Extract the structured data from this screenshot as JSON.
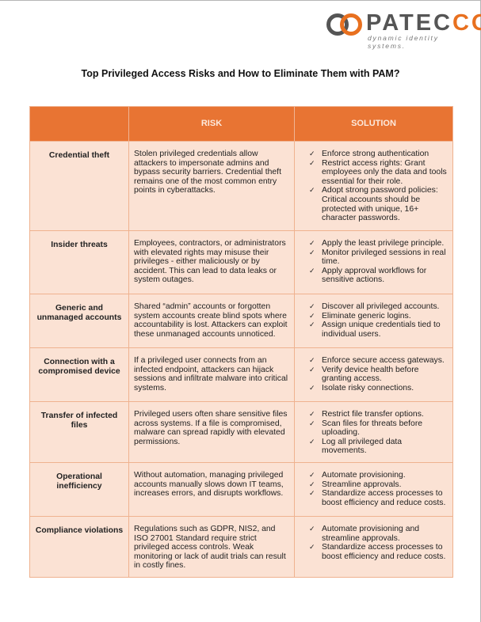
{
  "logo": {
    "brand_gray": "PATEC",
    "brand_orange": "CO",
    "tagline": "dynamic identity systems.",
    "colors": {
      "orange": "#e8701f",
      "gray": "#555555"
    }
  },
  "title": "Top Privileged Access Risks and How to Eliminate Them with PAM?",
  "table": {
    "headers": [
      "",
      "RISK",
      "SOLUTION"
    ],
    "header_color": "#e87433",
    "rows": [
      {
        "name": "Credential theft",
        "risk": "Stolen privileged credentials allow attackers to impersonate admins and bypass security barriers. Credential theft remains one of the most common entry points in cyberattacks.",
        "solutions": [
          "Enforce strong authentication",
          "Restrict access rights: Grant employees only the data and tools essential for their role.",
          "Adopt strong password policies: Critical accounts should be protected with unique, 16+ character passwords."
        ]
      },
      {
        "name": "Insider threats",
        "risk": "Employees, contractors, or administrators with elevated rights may misuse their privileges - either maliciously or by accident. This can lead to data leaks or system outages.",
        "solutions": [
          "Apply the least privilege principle.",
          "Monitor privileged sessions in real time.",
          "Apply approval workflows for sensitive actions."
        ]
      },
      {
        "name": "Generic and unmanaged accounts",
        "risk": "Shared “admin” accounts or forgotten system accounts create blind spots where accountability is lost. Attackers can exploit these unmanaged accounts unnoticed.",
        "solutions": [
          "Discover all privileged accounts.",
          "Eliminate generic logins.",
          "Assign unique credentials tied to individual users."
        ]
      },
      {
        "name": "Connection with a compromised device",
        "risk": "If a privileged user connects from an infected endpoint, attackers can hijack sessions and infiltrate malware into critical systems.",
        "solutions": [
          "Enforce secure access gateways.",
          "Verify device health before granting access.",
          "Isolate risky connections."
        ]
      },
      {
        "name": "Transfer of infected files",
        "risk": "Privileged users often share sensitive files across systems. If a file is compromised, malware can spread rapidly with elevated permissions.",
        "solutions": [
          "Restrict file transfer options.",
          "Scan files for threats before uploading.",
          "Log all privileged data movements."
        ]
      },
      {
        "name": "Operational inefficiency",
        "risk": "Without automation, managing privileged accounts manually slows down IT teams, increases errors, and disrupts workflows.",
        "solutions": [
          "Automate provisioning.",
          "Streamline approvals.",
          "Standardize access processes to boost efficiency and reduce costs."
        ]
      },
      {
        "name": "Compliance violations",
        "risk": "Regulations such as GDPR, NIS2, and ISO 27001 Standard require strict privileged access controls. Weak monitoring or lack of audit trials can result in costly fines.",
        "solutions": [
          "Automate provisioning and streamline approvals.",
          "Standardize access processes to boost efficiency and reduce costs."
        ]
      }
    ]
  }
}
